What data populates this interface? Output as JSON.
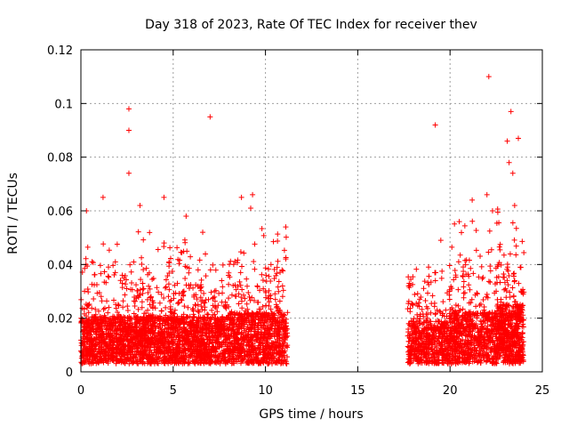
{
  "chart_data": {
    "type": "scatter",
    "title": "Day 318 of 2023, Rate Of TEC Index for receiver thev",
    "xlabel": "GPS time / hours",
    "ylabel": "ROTI / TECUs",
    "xlim": [
      0,
      25
    ],
    "ylim": [
      0,
      0.12
    ],
    "x_ticks": [
      "0",
      "5",
      "10",
      "15",
      "20",
      "25"
    ],
    "y_ticks": [
      "0",
      "0.02",
      "0.04",
      "0.06",
      "0.08",
      "0.1",
      "0.12"
    ],
    "grid": true,
    "marker": "+",
    "series_color": "#ff0000",
    "outliers": [
      {
        "x": 2.6,
        "y": 0.098
      },
      {
        "x": 2.6,
        "y": 0.09
      },
      {
        "x": 2.6,
        "y": 0.074
      },
      {
        "x": 7.0,
        "y": 0.095
      },
      {
        "x": 19.2,
        "y": 0.092
      },
      {
        "x": 22.1,
        "y": 0.11
      },
      {
        "x": 23.3,
        "y": 0.097
      },
      {
        "x": 23.1,
        "y": 0.086
      },
      {
        "x": 23.7,
        "y": 0.087
      },
      {
        "x": 23.2,
        "y": 0.078
      },
      {
        "x": 23.4,
        "y": 0.074
      },
      {
        "x": 22.0,
        "y": 0.066
      },
      {
        "x": 9.3,
        "y": 0.066
      },
      {
        "x": 8.7,
        "y": 0.065
      },
      {
        "x": 4.5,
        "y": 0.065
      },
      {
        "x": 1.2,
        "y": 0.065
      },
      {
        "x": 3.2,
        "y": 0.062
      },
      {
        "x": 0.3,
        "y": 0.06
      },
      {
        "x": 21.2,
        "y": 0.064
      },
      {
        "x": 20.5,
        "y": 0.056
      },
      {
        "x": 19.5,
        "y": 0.049
      },
      {
        "x": 22.3,
        "y": 0.06
      },
      {
        "x": 23.5,
        "y": 0.062
      },
      {
        "x": 9.2,
        "y": 0.061
      },
      {
        "x": 6.6,
        "y": 0.052
      },
      {
        "x": 5.7,
        "y": 0.058
      },
      {
        "x": 11.1,
        "y": 0.054
      }
    ],
    "density_segments": [
      {
        "x0": 0.0,
        "x1": 3.0,
        "base": 0.022,
        "spread": 0.028,
        "count": 900
      },
      {
        "x0": 3.0,
        "x1": 5.5,
        "base": 0.022,
        "spread": 0.03,
        "count": 800
      },
      {
        "x0": 5.5,
        "x1": 8.0,
        "base": 0.022,
        "spread": 0.026,
        "count": 750
      },
      {
        "x0": 8.0,
        "x1": 11.2,
        "base": 0.024,
        "spread": 0.03,
        "count": 900
      },
      {
        "x0": 17.7,
        "x1": 20.0,
        "base": 0.02,
        "spread": 0.022,
        "count": 600
      },
      {
        "x0": 20.0,
        "x1": 22.5,
        "base": 0.024,
        "spread": 0.03,
        "count": 700
      },
      {
        "x0": 22.5,
        "x1": 24.0,
        "base": 0.028,
        "spread": 0.032,
        "count": 600
      }
    ]
  }
}
